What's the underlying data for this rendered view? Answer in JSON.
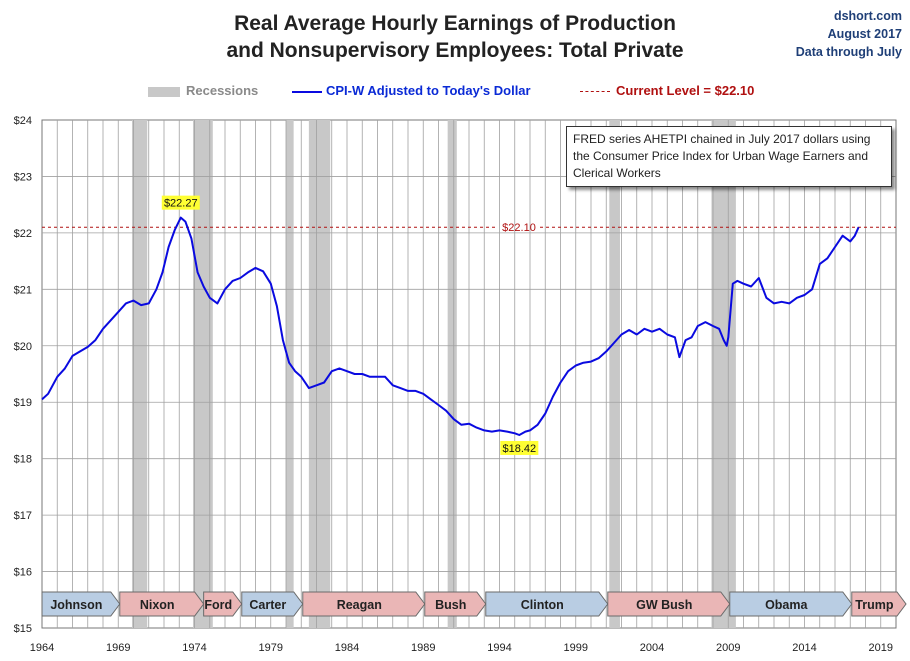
{
  "header": {
    "title_line1": "Real Average Hourly Earnings of Production",
    "title_line2": "and Nonsupervisory Employees: Total Private",
    "source_site": "dshort.com",
    "source_date": "August 2017",
    "source_through": "Data through July"
  },
  "legend": {
    "recessions": "Recessions",
    "series": "CPI-W Adjusted to Today's Dollar",
    "current": "Current Level = $22.10"
  },
  "note": "FRED series AHETPI chained in July 2017 dollars using the Consumer Price Index for Urban Wage Earners and Clerical Workers",
  "colors": {
    "line": "#0a0ae0",
    "current": "#b01010",
    "recession": "#c8c8c8",
    "grid": "#a0a0a0",
    "highlight": "#ffff33"
  },
  "chart_data": {
    "type": "line",
    "title": "Real Average Hourly Earnings of Production and Nonsupervisory Employees: Total Private",
    "xlim": [
      1964,
      2020
    ],
    "ylim": [
      15,
      24
    ],
    "grid": true,
    "legend_placement": "top",
    "y_ticks": [
      "$24",
      "$23",
      "$22",
      "$21",
      "$20",
      "$19",
      "$18",
      "$17",
      "$16",
      "$15"
    ],
    "x_ticks": [
      "1964",
      "1969",
      "1974",
      "1979",
      "1984",
      "1989",
      "1994",
      "1999",
      "2004",
      "2009",
      "2014",
      "2019"
    ],
    "current_level": 22.1,
    "current_label": "$22.10",
    "annotations": [
      {
        "label": "$22.27",
        "x": 1973.1,
        "y": 22.27,
        "pos": "above"
      },
      {
        "label": "$18.42",
        "x": 1995.3,
        "y": 18.42,
        "pos": "below"
      }
    ],
    "recessions": [
      [
        1969.9,
        1970.9
      ],
      [
        1973.9,
        1975.2
      ],
      [
        1980.0,
        1980.5
      ],
      [
        1981.5,
        1982.9
      ],
      [
        1990.6,
        1991.2
      ],
      [
        2001.2,
        2001.9
      ],
      [
        2007.9,
        2009.5
      ]
    ],
    "presidents": [
      {
        "name": "Johnson",
        "start": 1964.0,
        "end": 1969.1,
        "party": "D"
      },
      {
        "name": "Nixon",
        "start": 1969.1,
        "end": 1974.6,
        "party": "R"
      },
      {
        "name": "Ford",
        "start": 1974.6,
        "end": 1977.1,
        "party": "R"
      },
      {
        "name": "Carter",
        "start": 1977.1,
        "end": 1981.1,
        "party": "D"
      },
      {
        "name": "Reagan",
        "start": 1981.1,
        "end": 1989.1,
        "party": "R"
      },
      {
        "name": "Bush",
        "start": 1989.1,
        "end": 1993.1,
        "party": "R"
      },
      {
        "name": "Clinton",
        "start": 1993.1,
        "end": 2001.1,
        "party": "D"
      },
      {
        "name": "GW Bush",
        "start": 2001.1,
        "end": 2009.1,
        "party": "R"
      },
      {
        "name": "Obama",
        "start": 2009.1,
        "end": 2017.1,
        "party": "D"
      },
      {
        "name": "Trump",
        "start": 2017.1,
        "end": 2020.8,
        "party": "R"
      }
    ],
    "party_colors": {
      "D": "#b9cde3",
      "R": "#eab6b6"
    },
    "series": [
      {
        "name": "CPI-W Adjusted to Today's Dollar",
        "x": [
          1964.0,
          1964.4,
          1965.0,
          1965.5,
          1966.0,
          1966.5,
          1967.0,
          1967.5,
          1968.0,
          1968.5,
          1969.0,
          1969.5,
          1970.0,
          1970.5,
          1971.0,
          1971.5,
          1971.9,
          1972.3,
          1972.7,
          1973.1,
          1973.4,
          1973.8,
          1974.2,
          1974.6,
          1975.0,
          1975.5,
          1976.0,
          1976.5,
          1977.0,
          1977.5,
          1978.0,
          1978.5,
          1979.0,
          1979.4,
          1979.8,
          1980.2,
          1980.6,
          1981.0,
          1981.5,
          1982.0,
          1982.5,
          1983.0,
          1983.5,
          1984.0,
          1984.5,
          1985.0,
          1985.5,
          1986.0,
          1986.5,
          1987.0,
          1987.5,
          1988.0,
          1988.5,
          1989.0,
          1989.5,
          1990.0,
          1990.5,
          1991.0,
          1991.5,
          1992.0,
          1992.5,
          1993.0,
          1993.5,
          1994.0,
          1994.5,
          1995.0,
          1995.3,
          1995.7,
          1996.0,
          1996.5,
          1997.0,
          1997.5,
          1998.0,
          1998.5,
          1999.0,
          1999.5,
          2000.0,
          2000.5,
          2001.0,
          2001.5,
          2002.0,
          2002.5,
          2003.0,
          2003.5,
          2004.0,
          2004.5,
          2005.0,
          2005.5,
          2005.8,
          2006.2,
          2006.6,
          2007.0,
          2007.5,
          2008.0,
          2008.4,
          2008.7,
          2008.9,
          2009.0,
          2009.3,
          2009.6,
          2010.0,
          2010.5,
          2011.0,
          2011.5,
          2012.0,
          2012.5,
          2013.0,
          2013.5,
          2014.0,
          2014.5,
          2015.0,
          2015.5,
          2016.0,
          2016.5,
          2017.0,
          2017.3,
          2017.55
        ],
        "values": [
          19.05,
          19.15,
          19.45,
          19.6,
          19.82,
          19.9,
          19.98,
          20.1,
          20.3,
          20.45,
          20.6,
          20.75,
          20.8,
          20.72,
          20.75,
          21.0,
          21.3,
          21.75,
          22.05,
          22.27,
          22.2,
          21.9,
          21.3,
          21.05,
          20.85,
          20.75,
          21.0,
          21.15,
          21.2,
          21.3,
          21.38,
          21.32,
          21.1,
          20.7,
          20.1,
          19.7,
          19.55,
          19.45,
          19.25,
          19.3,
          19.35,
          19.55,
          19.6,
          19.55,
          19.5,
          19.5,
          19.45,
          19.45,
          19.45,
          19.3,
          19.25,
          19.2,
          19.2,
          19.15,
          19.05,
          18.95,
          18.85,
          18.7,
          18.6,
          18.62,
          18.55,
          18.5,
          18.48,
          18.5,
          18.48,
          18.45,
          18.42,
          18.48,
          18.5,
          18.6,
          18.8,
          19.1,
          19.35,
          19.55,
          19.65,
          19.7,
          19.72,
          19.78,
          19.9,
          20.05,
          20.2,
          20.28,
          20.2,
          20.3,
          20.25,
          20.3,
          20.2,
          20.15,
          19.8,
          20.1,
          20.15,
          20.35,
          20.42,
          20.35,
          20.3,
          20.1,
          20.0,
          20.15,
          21.1,
          21.15,
          21.1,
          21.05,
          21.2,
          20.85,
          20.75,
          20.78,
          20.75,
          20.85,
          20.9,
          21.0,
          21.45,
          21.55,
          21.75,
          21.95,
          21.85,
          21.95,
          22.1
        ]
      }
    ]
  }
}
